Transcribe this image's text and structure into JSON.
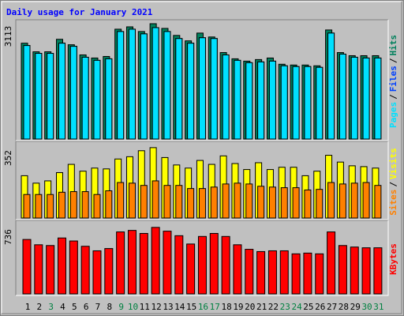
{
  "title": "Daily usage for January 2021",
  "legend_separator": "/",
  "chart_data": [
    {
      "type": "bar",
      "ylim": [
        0,
        3113
      ],
      "yticks": [
        3113
      ],
      "series": [
        {
          "name": "Hits",
          "color": "#00805c",
          "values": [
            2587,
            2355,
            2355,
            2692,
            2545,
            2271,
            2187,
            2229,
            2965,
            3028,
            2902,
            3113,
            2986,
            2797,
            2650,
            2860,
            2755,
            2334,
            2166,
            2103,
            2145,
            2187,
            2019,
            1998,
            1998,
            1977,
            2944,
            2334,
            2250,
            2250,
            2250
          ]
        },
        {
          "name": "Files",
          "color": "#0040ff",
          "values": [
            2524,
            2313,
            2313,
            2587,
            2503,
            2208,
            2124,
            2166,
            2902,
            2965,
            2839,
            3007,
            2902,
            2713,
            2587,
            2734,
            2713,
            2271,
            2124,
            2061,
            2082,
            2103,
            1977,
            1956,
            1956,
            1935,
            2860,
            2292,
            2208,
            2187,
            2187
          ]
        },
        {
          "name": "Pages",
          "color": "#00e0ff",
          "values": [
            2524,
            2313,
            2313,
            2587,
            2503,
            2208,
            2124,
            2166,
            2902,
            2965,
            2839,
            3007,
            2902,
            2713,
            2587,
            2734,
            2713,
            2271,
            2124,
            2061,
            2082,
            2103,
            1977,
            1956,
            1956,
            1935,
            2860,
            2292,
            2208,
            2187,
            2187
          ]
        }
      ]
    },
    {
      "type": "bar",
      "ylim": [
        0,
        352
      ],
      "yticks": [
        352
      ],
      "series": [
        {
          "name": "Visits",
          "color": "#ffff00",
          "values": [
            205,
            169,
            180,
            220,
            260,
            227,
            242,
            238,
            286,
            297,
            326,
            341,
            293,
            257,
            242,
            279,
            260,
            301,
            264,
            235,
            268,
            235,
            246,
            246,
            205,
            227,
            304,
            271,
            253,
            249,
            242
          ]
        },
        {
          "name": "Sites",
          "color": "#ff8000",
          "values": [
            114,
            114,
            114,
            125,
            128,
            128,
            114,
            132,
            172,
            169,
            158,
            180,
            158,
            158,
            143,
            143,
            150,
            165,
            169,
            165,
            154,
            150,
            147,
            147,
            136,
            139,
            172,
            165,
            169,
            172,
            158
          ]
        }
      ]
    },
    {
      "type": "bar",
      "ylim": [
        0,
        736
      ],
      "yticks": [
        736
      ],
      "categories": [
        "1",
        "2",
        "3",
        "4",
        "5",
        "6",
        "7",
        "8",
        "9",
        "10",
        "11",
        "12",
        "13",
        "14",
        "15",
        "16",
        "17",
        "18",
        "19",
        "20",
        "21",
        "22",
        "23",
        "24",
        "25",
        "26",
        "27",
        "28",
        "29",
        "30",
        "31"
      ],
      "label_colors": [
        "#000000",
        "#000000",
        "#008040",
        "#000000",
        "#000000",
        "#000000",
        "#000000",
        "#000000",
        "#008040",
        "#008040",
        "#000000",
        "#000000",
        "#000000",
        "#000000",
        "#000000",
        "#008040",
        "#008040",
        "#000000",
        "#000000",
        "#000000",
        "#000000",
        "#000000",
        "#008040",
        "#008040",
        "#000000",
        "#000000",
        "#000000",
        "#000000",
        "#000000",
        "#008040",
        "#008040"
      ],
      "series": [
        {
          "name": "KBytes",
          "color": "#ff0000",
          "values": [
            576,
            520,
            512,
            592,
            560,
            504,
            456,
            480,
            656,
            672,
            640,
            704,
            664,
            616,
            528,
            608,
            640,
            608,
            520,
            472,
            448,
            456,
            456,
            424,
            432,
            424,
            656,
            512,
            496,
            488,
            488
          ]
        }
      ]
    }
  ]
}
